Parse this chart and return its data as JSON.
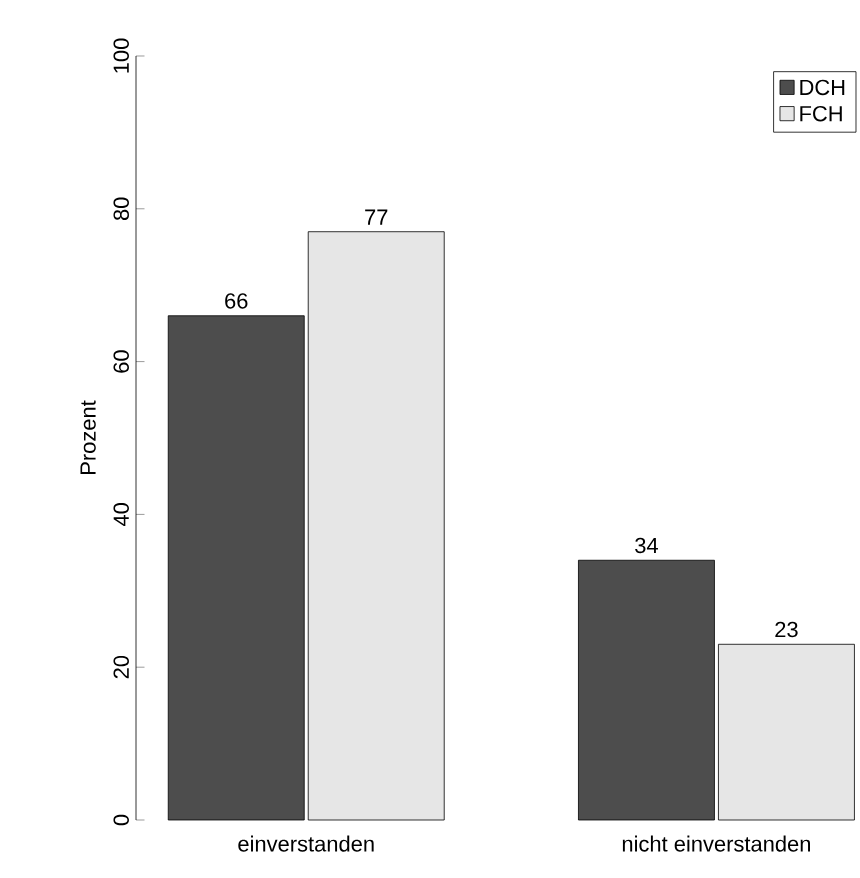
{
  "chart_data": {
    "type": "bar",
    "ylabel": "Prozent",
    "categories": [
      "einverstanden",
      "nicht einverstanden"
    ],
    "series": [
      {
        "name": "DCH",
        "color": "#4d4d4d",
        "values": [
          66,
          34
        ]
      },
      {
        "name": "FCH",
        "color": "#e6e6e6",
        "values": [
          77,
          23
        ]
      }
    ],
    "ylim": [
      0,
      100
    ],
    "yticks": [
      0,
      20,
      40,
      60,
      80,
      100
    ],
    "data_labels": true,
    "legend": "top right",
    "grid": false
  }
}
